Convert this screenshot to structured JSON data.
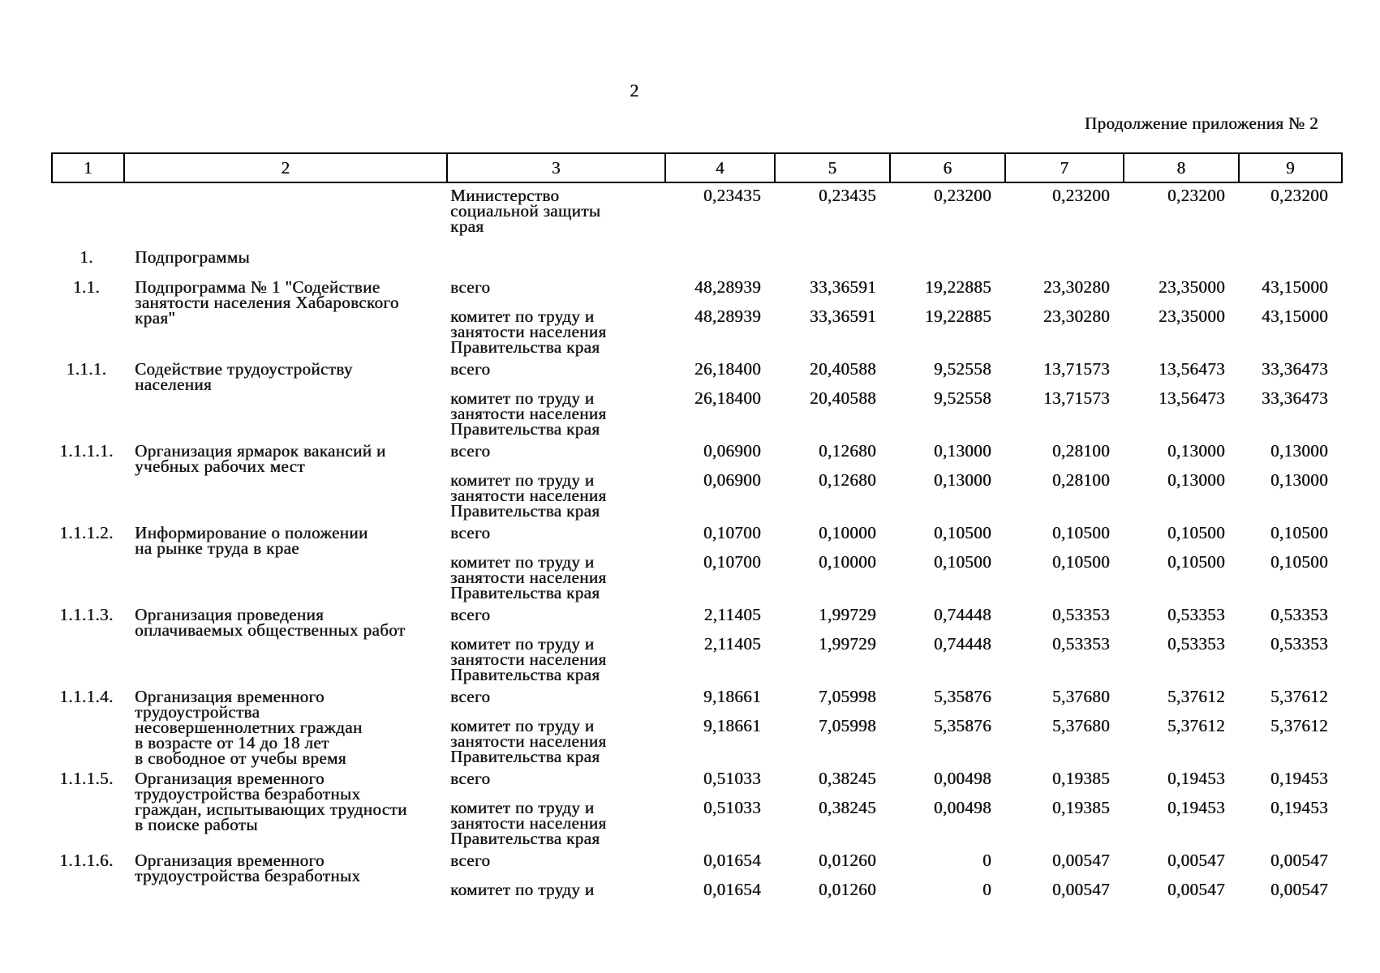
{
  "page": {
    "number": "2",
    "subtitle": "Продолжение приложения № 2"
  },
  "table": {
    "header_cols": [
      "1",
      "2",
      "3",
      "4",
      "5",
      "6",
      "7",
      "8",
      "9"
    ],
    "rows": [
      {
        "num": "",
        "name": "",
        "executors": [
          {
            "label": "Министерство\nсоциальной защиты\nкрая",
            "values": [
              "0,23435",
              "0,23435",
              "0,23200",
              "0,23200",
              "0,23200",
              "0,23200"
            ]
          }
        ]
      },
      {
        "num": "1.",
        "name": "Подпрограммы",
        "executors": []
      },
      {
        "num": "1.1.",
        "name": "Подпрограмма № 1 \"Содействие\nзанятости населения Хабаровского\nкрая\"",
        "executors": [
          {
            "label": "всего",
            "values": [
              "48,28939",
              "33,36591",
              "19,22885",
              "23,30280",
              "23,35000",
              "43,15000"
            ]
          },
          {
            "label": "комитет по труду и\nзанятости населения\nПравительства края",
            "values": [
              "48,28939",
              "33,36591",
              "19,22885",
              "23,30280",
              "23,35000",
              "43,15000"
            ]
          }
        ]
      },
      {
        "num": "1.1.1.",
        "name": "Содействие трудоустройству\nнаселения",
        "executors": [
          {
            "label": "всего",
            "values": [
              "26,18400",
              "20,40588",
              "9,52558",
              "13,71573",
              "13,56473",
              "33,36473"
            ]
          },
          {
            "label": "комитет по труду и\nзанятости населения\nПравительства края",
            "values": [
              "26,18400",
              "20,40588",
              "9,52558",
              "13,71573",
              "13,56473",
              "33,36473"
            ]
          }
        ]
      },
      {
        "num": "1.1.1.1.",
        "name": "Организация ярмарок вакансий и\nучебных рабочих мест",
        "executors": [
          {
            "label": "всего",
            "values": [
              "0,06900",
              "0,12680",
              "0,13000",
              "0,28100",
              "0,13000",
              "0,13000"
            ]
          },
          {
            "label": "комитет по труду и\nзанятости населения\nПравительства края",
            "values": [
              "0,06900",
              "0,12680",
              "0,13000",
              "0,28100",
              "0,13000",
              "0,13000"
            ]
          }
        ]
      },
      {
        "num": "1.1.1.2.",
        "name": "Информирование о положении\nна рынке труда в крае",
        "executors": [
          {
            "label": "всего",
            "values": [
              "0,10700",
              "0,10000",
              "0,10500",
              "0,10500",
              "0,10500",
              "0,10500"
            ]
          },
          {
            "label": "комитет по труду и\nзанятости населения\nПравительства края",
            "values": [
              "0,10700",
              "0,10000",
              "0,10500",
              "0,10500",
              "0,10500",
              "0,10500"
            ]
          }
        ]
      },
      {
        "num": "1.1.1.3.",
        "name": "Организация проведения\nоплачиваемых общественных работ",
        "executors": [
          {
            "label": "всего",
            "values": [
              "2,11405",
              "1,99729",
              "0,74448",
              "0,53353",
              "0,53353",
              "0,53353"
            ]
          },
          {
            "label": "комитет по труду и\nзанятости населения\nПравительства края",
            "values": [
              "2,11405",
              "1,99729",
              "0,74448",
              "0,53353",
              "0,53353",
              "0,53353"
            ]
          }
        ]
      },
      {
        "num": "1.1.1.4.",
        "name": "Организация временного\nтрудоустройства\nнесовершеннолетних граждан\nв возрасте от 14 до 18 лет\nв свободное от учебы время",
        "executors": [
          {
            "label": "всего",
            "values": [
              "9,18661",
              "7,05998",
              "5,35876",
              "5,37680",
              "5,37612",
              "5,37612"
            ]
          },
          {
            "label": "комитет по труду и\nзанятости населения\nПравительства края",
            "values": [
              "9,18661",
              "7,05998",
              "5,35876",
              "5,37680",
              "5,37612",
              "5,37612"
            ]
          }
        ]
      },
      {
        "num": "1.1.1.5.",
        "name": "Организация временного\nтрудоустройства безработных\nграждан, испытывающих трудности\nв поиске работы",
        "executors": [
          {
            "label": "всего",
            "values": [
              "0,51033",
              "0,38245",
              "0,00498",
              "0,19385",
              "0,19453",
              "0,19453"
            ]
          },
          {
            "label": "комитет по труду и\nзанятости населения\nПравительства края",
            "values": [
              "0,51033",
              "0,38245",
              "0,00498",
              "0,19385",
              "0,19453",
              "0,19453"
            ]
          }
        ]
      },
      {
        "num": "1.1.1.6.",
        "name": "Организация временного\nтрудоустройства безработных",
        "executors": [
          {
            "label": "всего",
            "values": [
              "0,01654",
              "0,01260",
              "0",
              "0,00547",
              "0,00547",
              "0,00547"
            ]
          },
          {
            "label": "комитет по труду и",
            "values": [
              "0,01654",
              "0,01260",
              "0",
              "0,00547",
              "0,00547",
              "0,00547"
            ]
          }
        ]
      }
    ]
  }
}
